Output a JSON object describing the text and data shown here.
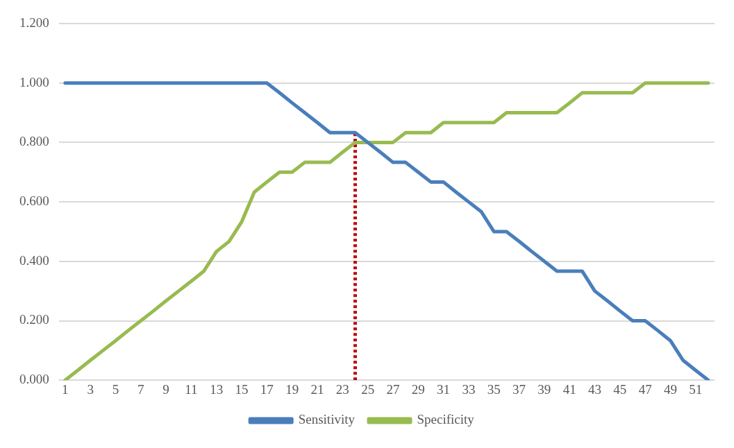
{
  "chart_data": {
    "type": "line",
    "x": [
      1,
      2,
      3,
      4,
      5,
      6,
      7,
      8,
      9,
      10,
      11,
      12,
      13,
      14,
      15,
      16,
      17,
      18,
      19,
      20,
      21,
      22,
      23,
      24,
      25,
      26,
      27,
      28,
      29,
      30,
      31,
      32,
      33,
      34,
      35,
      36,
      37,
      38,
      39,
      40,
      41,
      42,
      43,
      44,
      45,
      46,
      47,
      48,
      49,
      50,
      51,
      52
    ],
    "series": [
      {
        "name": "Sensitivity",
        "color": "#4a7ebb",
        "values": [
          1,
          1,
          1,
          1,
          1,
          1,
          1,
          1,
          1,
          1,
          1,
          1,
          1,
          1,
          1,
          1,
          1,
          0.967,
          0.933,
          0.9,
          0.867,
          0.833,
          0.833,
          0.833,
          0.8,
          0.767,
          0.733,
          0.733,
          0.7,
          0.667,
          0.667,
          0.633,
          0.6,
          0.567,
          0.5,
          0.5,
          0.467,
          0.433,
          0.4,
          0.367,
          0.367,
          0.367,
          0.3,
          0.267,
          0.233,
          0.2,
          0.2,
          0.167,
          0.133,
          0.067,
          0.033,
          0
        ]
      },
      {
        "name": "Specificity",
        "color": "#98bb50",
        "values": [
          0,
          0.033,
          0.067,
          0.1,
          0.133,
          0.167,
          0.2,
          0.233,
          0.267,
          0.3,
          0.333,
          0.367,
          0.433,
          0.467,
          0.533,
          0.633,
          0.667,
          0.7,
          0.7,
          0.733,
          0.733,
          0.733,
          0.767,
          0.8,
          0.8,
          0.8,
          0.8,
          0.833,
          0.833,
          0.833,
          0.867,
          0.867,
          0.867,
          0.867,
          0.867,
          0.9,
          0.9,
          0.9,
          0.9,
          0.9,
          0.933,
          0.967,
          0.967,
          0.967,
          0.967,
          0.967,
          1,
          1,
          1,
          1,
          1,
          1
        ]
      },
      {
        "type": "line",
        "color": "#c00000",
        "line_style": "dotted",
        "x": [
          24,
          24
        ],
        "values": [
          0,
          0.833
        ]
      }
    ],
    "xlim": [
      0.5,
      52.5
    ],
    "xticks": [
      1,
      3,
      5,
      7,
      9,
      11,
      13,
      15,
      17,
      19,
      21,
      23,
      25,
      27,
      29,
      31,
      33,
      35,
      37,
      39,
      41,
      43,
      45,
      47,
      49,
      51
    ],
    "ylim": [
      0,
      1.2
    ],
    "yticks": [
      {
        "value": 0,
        "label": "0.000"
      },
      {
        "value": 0.2,
        "label": "0.200"
      },
      {
        "value": 0.4,
        "label": "0.400"
      },
      {
        "value": 0.6,
        "label": "0.600"
      },
      {
        "value": 0.8,
        "label": "0.800"
      },
      {
        "value": 1,
        "label": "1.000"
      },
      {
        "value": 1.2,
        "label": "1.200"
      }
    ],
    "grid": "y",
    "legend": "bottom",
    "marker": "none",
    "line_style": "solid"
  }
}
